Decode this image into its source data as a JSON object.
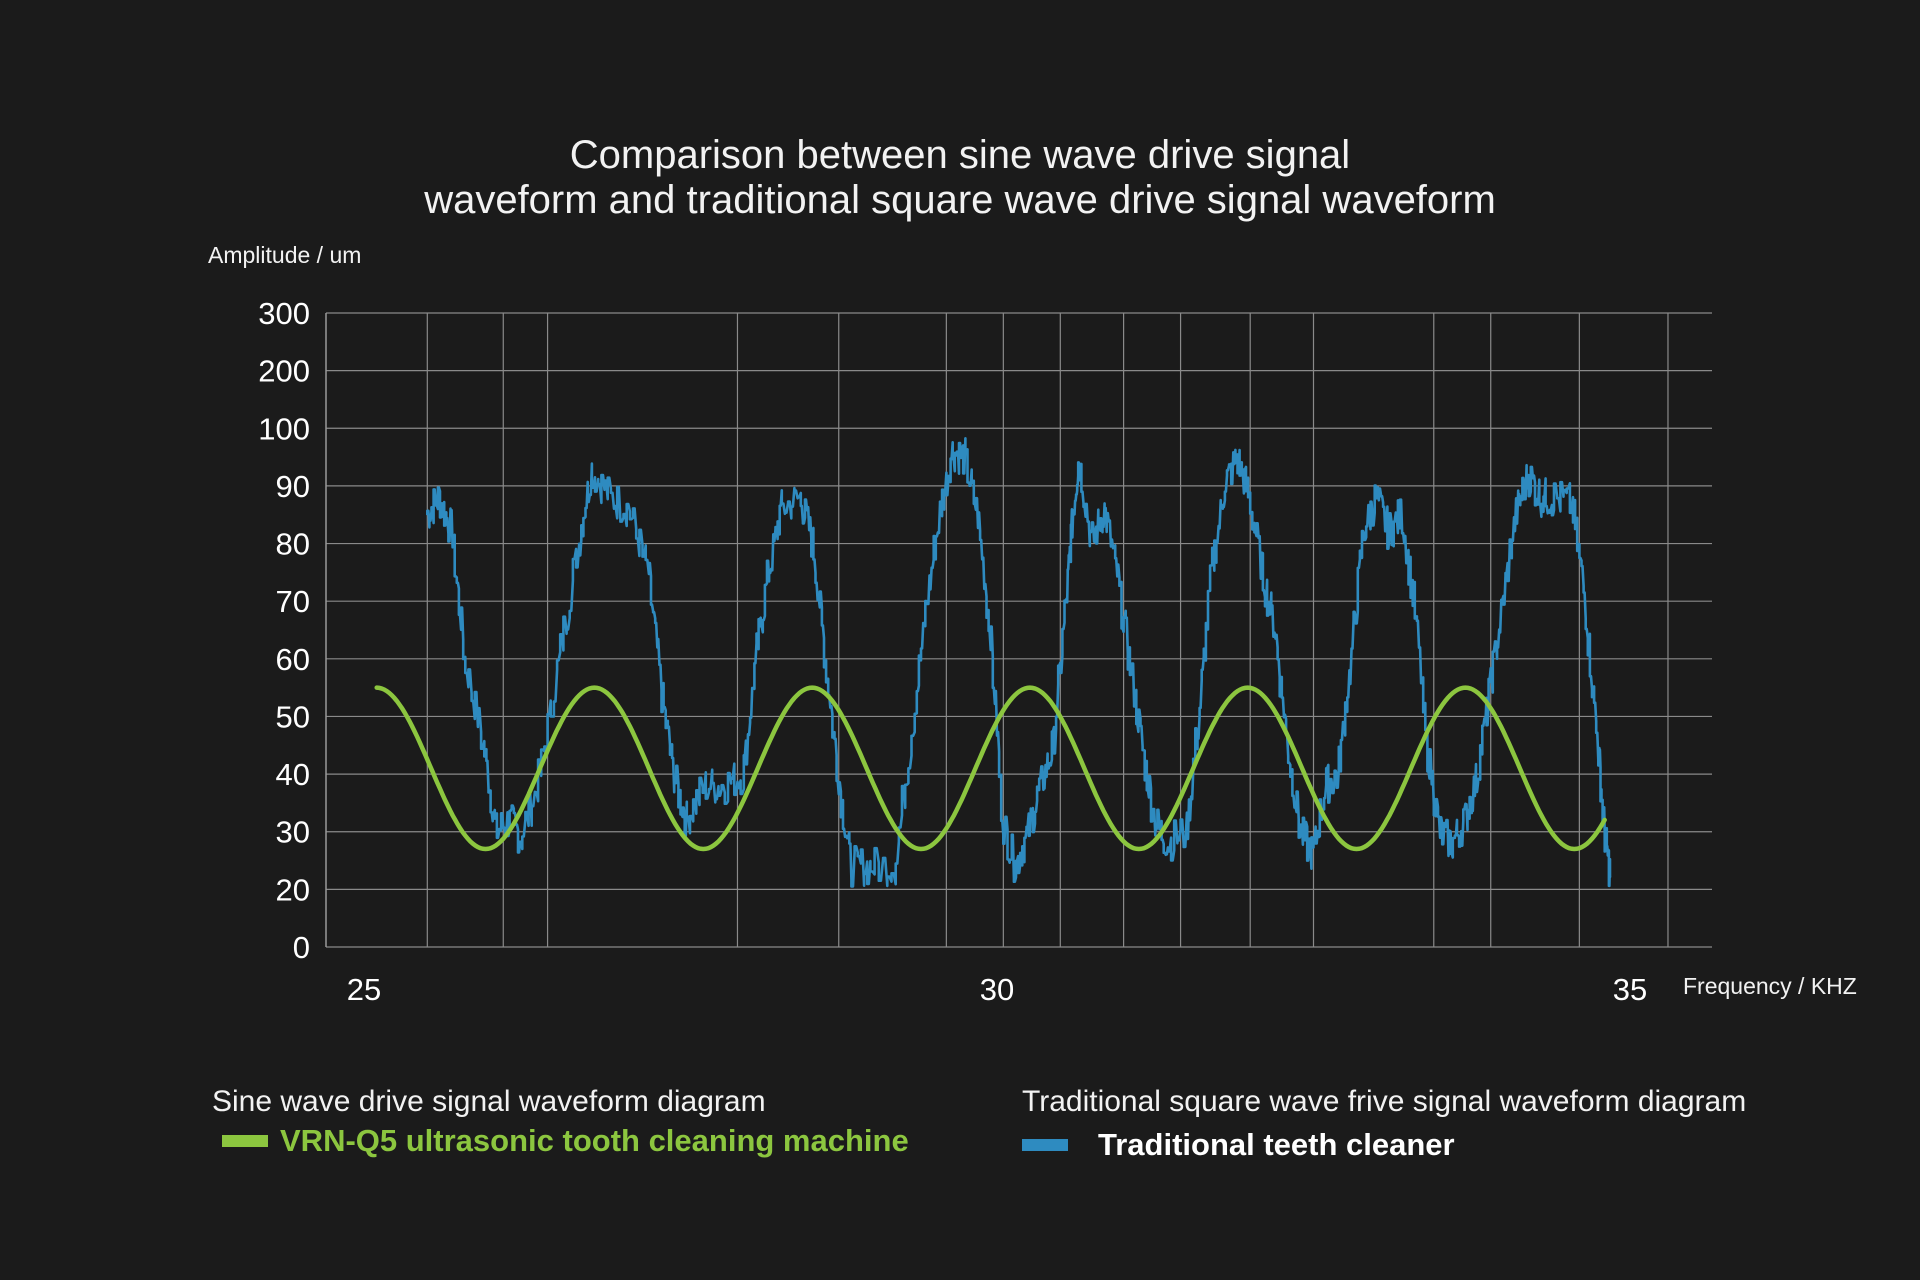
{
  "chart_data": {
    "type": "line",
    "title": "Comparison between sine wave drive signal waveform and traditional square wave drive signal waveform",
    "title_lines": [
      "Comparison between sine wave drive signal",
      "waveform and traditional square wave drive signal waveform"
    ],
    "ylabel": "Amplitude / um",
    "xlabel": "Frequency / KHZ",
    "y_ticks": [
      "0",
      "20",
      "30",
      "40",
      "50",
      "60",
      "70",
      "80",
      "90",
      "100",
      "200",
      "300"
    ],
    "x_ticks": [
      25,
      30,
      35
    ],
    "xlim": [
      25,
      35
    ],
    "grid": true,
    "series": [
      {
        "name": "VRN-Q5 ultrasonic tooth cleaning machine",
        "color": "#8cc63f",
        "style": "sine",
        "x_range": [
          25.1,
          34.8
        ],
        "peak": 55,
        "trough": 27,
        "period_khz": 1.72
      },
      {
        "name": "Traditional teeth cleaner",
        "color": "#2e8bc0",
        "style": "noisy",
        "points": [
          [
            25.5,
            85
          ],
          [
            25.6,
            88
          ],
          [
            25.7,
            82
          ],
          [
            25.8,
            60
          ],
          [
            25.95,
            45
          ],
          [
            26.05,
            30
          ],
          [
            26.15,
            32
          ],
          [
            26.25,
            29
          ],
          [
            26.4,
            40
          ],
          [
            26.55,
            60
          ],
          [
            26.7,
            80
          ],
          [
            26.8,
            93
          ],
          [
            26.95,
            88
          ],
          [
            27.1,
            86
          ],
          [
            27.25,
            75
          ],
          [
            27.35,
            55
          ],
          [
            27.45,
            40
          ],
          [
            27.55,
            32
          ],
          [
            27.7,
            38
          ],
          [
            27.85,
            38
          ],
          [
            28.0,
            40
          ],
          [
            28.1,
            60
          ],
          [
            28.2,
            75
          ],
          [
            28.3,
            86
          ],
          [
            28.45,
            88
          ],
          [
            28.55,
            80
          ],
          [
            28.65,
            60
          ],
          [
            28.75,
            40
          ],
          [
            28.85,
            24
          ],
          [
            29.0,
            24
          ],
          [
            29.2,
            24
          ],
          [
            29.35,
            50
          ],
          [
            29.45,
            70
          ],
          [
            29.55,
            85
          ],
          [
            29.65,
            96
          ],
          [
            29.75,
            95
          ],
          [
            29.85,
            85
          ],
          [
            29.95,
            65
          ],
          [
            30.05,
            32
          ],
          [
            30.15,
            24
          ],
          [
            30.25,
            30
          ],
          [
            30.35,
            38
          ],
          [
            30.45,
            45
          ],
          [
            30.55,
            70
          ],
          [
            30.6,
            85
          ],
          [
            30.65,
            95
          ],
          [
            30.75,
            80
          ],
          [
            30.85,
            86
          ],
          [
            30.95,
            75
          ],
          [
            31.05,
            60
          ],
          [
            31.15,
            45
          ],
          [
            31.25,
            32
          ],
          [
            31.35,
            28
          ],
          [
            31.5,
            30
          ],
          [
            31.6,
            50
          ],
          [
            31.7,
            75
          ],
          [
            31.8,
            90
          ],
          [
            31.9,
            95
          ],
          [
            32.0,
            88
          ],
          [
            32.1,
            75
          ],
          [
            32.2,
            65
          ],
          [
            32.3,
            45
          ],
          [
            32.4,
            30
          ],
          [
            32.5,
            26
          ],
          [
            32.6,
            38
          ],
          [
            32.7,
            40
          ],
          [
            32.8,
            60
          ],
          [
            32.9,
            82
          ],
          [
            33.0,
            88
          ],
          [
            33.1,
            82
          ],
          [
            33.2,
            85
          ],
          [
            33.3,
            70
          ],
          [
            33.4,
            45
          ],
          [
            33.5,
            30
          ],
          [
            33.6,
            28
          ],
          [
            33.7,
            32
          ],
          [
            33.8,
            40
          ],
          [
            33.9,
            55
          ],
          [
            34.0,
            70
          ],
          [
            34.1,
            85
          ],
          [
            34.2,
            92
          ],
          [
            34.3,
            88
          ],
          [
            34.4,
            88
          ],
          [
            34.55,
            87
          ],
          [
            34.65,
            70
          ],
          [
            34.75,
            45
          ],
          [
            34.8,
            30
          ],
          [
            34.85,
            22
          ]
        ]
      }
    ]
  },
  "legend": {
    "sine_heading": "Sine wave drive signal waveform diagram",
    "sine_name": "VRN-Q5 ultrasonic tooth cleaning machine",
    "sine_color": "#8cc63f",
    "square_heading": "Traditional square wave frive signal waveform diagram",
    "square_name": "Traditional teeth cleaner",
    "square_color": "#2e8bc0",
    "square_name_color": "#ffffff"
  }
}
